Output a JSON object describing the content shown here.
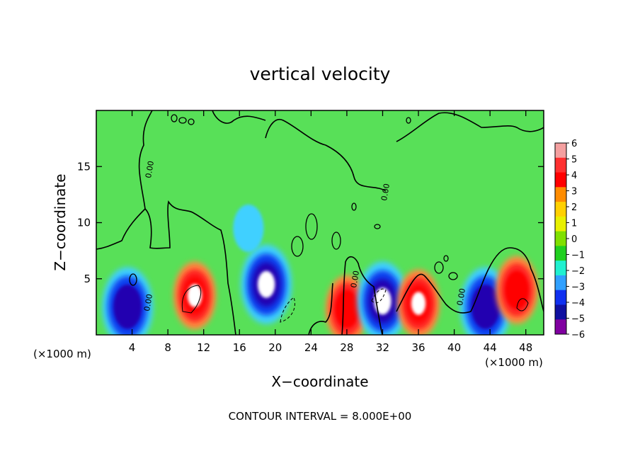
{
  "chart_data": {
    "type": "heatmap",
    "title": "vertical velocity",
    "xlabel": "X−coordinate",
    "ylabel": "Z−coordinate",
    "x_unit_left": "(×1000 m)",
    "x_unit_right": "(×1000 m)",
    "xlim": [
      0,
      50
    ],
    "ylim": [
      0,
      20
    ],
    "x_ticks": [
      "4",
      "8",
      "12",
      "16",
      "20",
      "24",
      "28",
      "32",
      "36",
      "40",
      "44",
      "48"
    ],
    "x_tick_values": [
      4,
      8,
      12,
      16,
      20,
      24,
      28,
      32,
      36,
      40,
      44,
      48
    ],
    "y_ticks": [
      "5",
      "10",
      "15"
    ],
    "y_tick_values": [
      5,
      10,
      15
    ],
    "colorbar": {
      "labels": [
        "6",
        "5",
        "4",
        "3",
        "2",
        "1",
        "0",
        "−1",
        "−2",
        "−3",
        "−4",
        "−5",
        "−6"
      ],
      "values": [
        6,
        5,
        4,
        3,
        2,
        1,
        0,
        -1,
        -2,
        -3,
        -4,
        -5,
        -6
      ],
      "colors": [
        "#f4a0a0",
        "#ff3030",
        "#ff0000",
        "#ff8c00",
        "#ffd000",
        "#e8f000",
        "#80e000",
        "#20d020",
        "#20f0d0",
        "#30a0ff",
        "#1030f0",
        "#1010a0",
        "#8000a0"
      ]
    },
    "contour_label": "0.00",
    "features": [
      {
        "x": 11,
        "z": 3.5,
        "value": 6,
        "kind": "updraft"
      },
      {
        "x": 19,
        "z": 4.5,
        "value": -6,
        "kind": "downdraft"
      },
      {
        "x": 28,
        "z": 2.3,
        "value": 5,
        "kind": "updraft"
      },
      {
        "x": 32,
        "z": 3.0,
        "value": -6,
        "kind": "downdraft"
      },
      {
        "x": 36,
        "z": 2.8,
        "value": 6,
        "kind": "updraft"
      },
      {
        "x": 43.5,
        "z": 2.5,
        "value": -5,
        "kind": "downdraft"
      },
      {
        "x": 47,
        "z": 4.0,
        "value": 5,
        "kind": "updraft"
      },
      {
        "x": 3.5,
        "z": 2.5,
        "value": -4,
        "kind": "downdraft"
      },
      {
        "x": 17,
        "z": 9.5,
        "value": -2,
        "kind": "weak downdraft"
      }
    ],
    "footer": "CONTOUR INTERVAL = 8.000E+00"
  }
}
